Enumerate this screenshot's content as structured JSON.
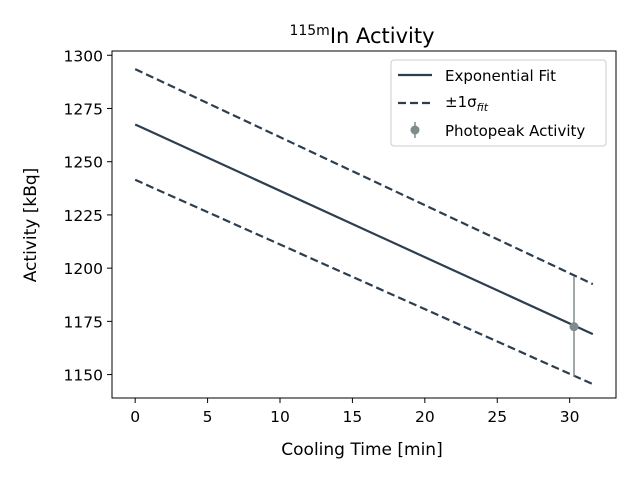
{
  "chart_data": {
    "type": "line",
    "title": {
      "superscript": "115m",
      "main": "In Activity"
    },
    "xlabel": "Cooling Time [min]",
    "ylabel": "Activity [kBq]",
    "xlim": [
      -1.6,
      33.2
    ],
    "ylim": [
      1139,
      1302
    ],
    "xticks": [
      0,
      5,
      10,
      15,
      20,
      25,
      30
    ],
    "yticks": [
      1150,
      1175,
      1200,
      1225,
      1250,
      1275,
      1300
    ],
    "grid": false,
    "legend_position": "top-right",
    "series": [
      {
        "name": "Exponential Fit",
        "style": "solid",
        "color": "#2c3e50",
        "x": [
          0,
          31.6
        ],
        "y": [
          1267.5,
          1169
        ]
      },
      {
        "name": "±1σ_fit",
        "legend_main": "±1σ",
        "legend_sub": "fit",
        "style": "dashed",
        "color": "#2c3e50",
        "x": [
          0,
          31.6
        ],
        "y": [
          1293.5,
          1192.5
        ]
      },
      {
        "name": "",
        "style": "dashed",
        "color": "#2c3e50",
        "x": [
          0,
          31.6
        ],
        "y": [
          1241.5,
          1145.5
        ]
      }
    ],
    "points": [
      {
        "name": "Photopeak Activity",
        "color": "#7f8c8d",
        "x": 30.3,
        "y": 1172.5,
        "yerr_low": 1149,
        "yerr_high": 1196
      }
    ]
  }
}
